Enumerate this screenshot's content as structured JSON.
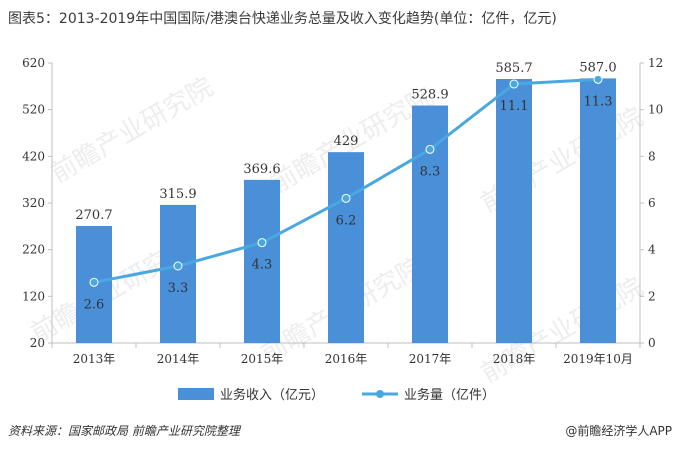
{
  "title": "图表5：2013-2019年中国国际/港澳台快递业务总量及收入变化趋势(单位：亿件，亿元)",
  "footer": {
    "source": "资料来源：国家邮政局 前瞻产业研究院整理",
    "brand": "@前瞻经济学人APP"
  },
  "watermark_text": "前瞻产业研究院",
  "colors": {
    "bar": "#4a90d9",
    "line": "#4aa8e0",
    "axis": "#bfbfbf",
    "text": "#333333"
  },
  "chart_data": {
    "type": "bar",
    "title": "",
    "categories": [
      "2013年",
      "2014年",
      "2015年",
      "2016年",
      "2017年",
      "2018年",
      "2019年10月"
    ],
    "left_ticks": [
      "620",
      "520",
      "420",
      "320",
      "220",
      "120",
      "20"
    ],
    "right_ticks": [
      "12",
      "10",
      "8",
      "6",
      "4",
      "2",
      "0"
    ],
    "ylim_left": [
      20,
      620
    ],
    "ylim_right": [
      0,
      12
    ],
    "series": [
      {
        "name": "业务收入（亿元）",
        "type": "bar",
        "axis": "left",
        "values": [
          270.7,
          315.9,
          369.6,
          429,
          528.9,
          585.7,
          587.0
        ],
        "labels": [
          "270.7",
          "315.9",
          "369.6",
          "429",
          "528.9",
          "585.7",
          "587.0"
        ]
      },
      {
        "name": "业务量（亿件）",
        "type": "line",
        "axis": "right",
        "values": [
          2.6,
          3.3,
          4.3,
          6.2,
          8.3,
          11.1,
          11.3
        ],
        "labels": [
          "2.6",
          "3.3",
          "4.3",
          "6.2",
          "8.3",
          "11.1",
          "11.3"
        ]
      }
    ],
    "legend_position": "bottom",
    "grid": false
  }
}
